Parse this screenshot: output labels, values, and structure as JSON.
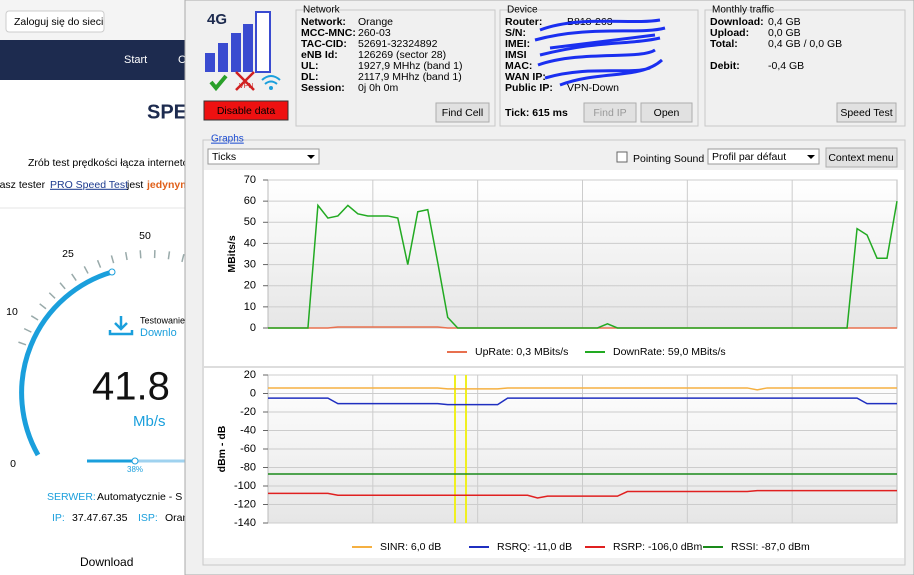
{
  "browser": {
    "login_button": "Zaloguj się do sieci",
    "nav": [
      "Start",
      "C"
    ],
    "heading": "SPE",
    "intro": "Zrób test prędkości łącza internetow",
    "tester": {
      "prefix": "Nasz tester",
      "link": "PRO Speed Test",
      "middle": "jest",
      "highlight": "jedynym"
    },
    "gauge": {
      "labels": [
        0,
        10,
        25,
        50
      ],
      "status": "Testowanie",
      "status_sub": "Downlo",
      "speed": "41.8",
      "unit": "Mb/s",
      "progress": "38%"
    },
    "server_label": "SERWER:",
    "server": "Automatycznie - S",
    "ip_label": "IP:",
    "ip": "37.47.67.35",
    "isp_label": "ISP:",
    "isp": "Oran",
    "download": "Download"
  },
  "status": {
    "tech": "4G",
    "vpn": "VPN",
    "disable_button": "Disable data"
  },
  "network": {
    "title": "Network",
    "rows": [
      [
        "Network:",
        "Orange"
      ],
      [
        "MCC-MNC:",
        "260-03"
      ],
      [
        "TAC-CID:",
        "52691-32324892"
      ],
      [
        "eNB Id:",
        "126269 (sector 28)"
      ],
      [
        "UL:",
        "1927,9 MHhz (band 1)"
      ],
      [
        "DL:",
        "2117,9 MHhz (band 1)"
      ],
      [
        "Session:",
        "0j 0h 0m"
      ]
    ],
    "button": "Find Cell"
  },
  "device": {
    "title": "Device",
    "rows": [
      [
        "Router:",
        "B818-263"
      ],
      [
        "S/N:"
      ],
      [
        "IMEI:"
      ],
      [
        "IMSI"
      ],
      [
        "MAC:"
      ],
      [
        "WAN IP:"
      ],
      [
        "Public IP:",
        "VPN-Down"
      ]
    ],
    "tick": "Tick: 615 ms",
    "buttons": [
      "Find IP",
      "Open"
    ]
  },
  "monthly": {
    "title": "Monthly traffic",
    "rows": [
      [
        "Download:",
        "0,4 GB"
      ],
      [
        "Upload:",
        "0,0 GB"
      ],
      [
        "Total:",
        "0,4 GB / 0,0 GB"
      ],
      [
        "Debit:",
        "-0,4 GB"
      ]
    ],
    "button": "Speed Test"
  },
  "graphs": {
    "title": "Graphs",
    "ticks_select": "Ticks",
    "pointing_sound": "Pointing Sound",
    "profile": "Profil par défaut",
    "context_menu": "Context menu"
  },
  "chart_data": [
    {
      "type": "line",
      "y_label": "MBits/s",
      "ylim": [
        0,
        70
      ],
      "yticks": [
        0,
        10,
        20,
        30,
        40,
        50,
        60,
        70
      ],
      "grid": true,
      "series": [
        {
          "name": "UpRate: 0,3 MBits/s",
          "color": "#e8704f",
          "values": [
            0,
            0,
            0,
            0,
            0,
            0,
            0,
            0.5,
            0.5,
            0.5,
            0.5,
            0.5,
            0.5,
            0.5,
            0.5,
            0.5,
            0.5,
            0.5,
            0,
            0,
            0,
            0,
            0,
            0,
            0,
            0,
            0,
            0,
            0,
            0,
            0,
            0,
            0,
            0,
            0,
            0,
            0,
            0,
            0,
            0,
            0,
            0,
            0,
            0,
            0,
            0,
            0,
            0,
            0,
            0,
            0,
            0,
            0,
            0,
            0,
            0,
            0,
            0,
            0,
            0,
            0,
            0,
            0,
            0
          ]
        },
        {
          "name": "DownRate: 59,0 MBits/s",
          "color": "#22aa22",
          "values": [
            0,
            0,
            0,
            0,
            0,
            58,
            52,
            53,
            58,
            54,
            53,
            53,
            53,
            52,
            30,
            55,
            56,
            31,
            5,
            0,
            0,
            0,
            0,
            0,
            0,
            0,
            0,
            0,
            0,
            0,
            0,
            0,
            0,
            0,
            2,
            0,
            0,
            0,
            0,
            0,
            0,
            0,
            0,
            0,
            0,
            0,
            0,
            0,
            0,
            0,
            0,
            0,
            0,
            0,
            0,
            0,
            0,
            0,
            0,
            47,
            44,
            33,
            33,
            60
          ]
        }
      ]
    },
    {
      "type": "line",
      "y_label": "dBm - dB",
      "ylim": [
        -140,
        20
      ],
      "yticks": [
        -140,
        -120,
        -100,
        -80,
        -60,
        -40,
        -20,
        0,
        20
      ],
      "grid": true,
      "series": [
        {
          "name": "SINR: 6,0 dB",
          "color": "#f5b041",
          "values": [
            6,
            6,
            6,
            6,
            6,
            6,
            6,
            6,
            6,
            6,
            6,
            6,
            6,
            6,
            6,
            6,
            6,
            6,
            5,
            5,
            5,
            5,
            5,
            5,
            6,
            6,
            6,
            6,
            6,
            6,
            6,
            6,
            6,
            6,
            6,
            6,
            6,
            6,
            6,
            6,
            6,
            6,
            6,
            6,
            6,
            6,
            6,
            6,
            6,
            4,
            6,
            6,
            6,
            6,
            6,
            6,
            6,
            6,
            6,
            6,
            6,
            6,
            6,
            6
          ]
        },
        {
          "name": "RSRQ: -11,0 dB",
          "color": "#1f2fc0",
          "values": [
            -5,
            -5,
            -5,
            -5,
            -5,
            -5,
            -5,
            -11,
            -11,
            -11,
            -11,
            -11,
            -11,
            -11,
            -11,
            -11,
            -11,
            -11,
            -12,
            -12,
            -12,
            -12,
            -12,
            -12,
            -5,
            -5,
            -5,
            -5,
            -5,
            -5,
            -5,
            -5,
            -5,
            -5,
            -5,
            -5,
            -5,
            -5,
            -5,
            -5,
            -5,
            -5,
            -5,
            -5,
            -5,
            -5,
            -5,
            -5,
            -5,
            -5,
            -5,
            -5,
            -5,
            -5,
            -5,
            -5,
            -5,
            -5,
            -5,
            -5,
            -11,
            -11,
            -11,
            -11
          ]
        },
        {
          "name": "RSRP: -106,0 dBm",
          "color": "#e02020",
          "values": [
            -108,
            -108,
            -108,
            -108,
            -108,
            -108,
            -108,
            -110,
            -110,
            -110,
            -110,
            -110,
            -110,
            -110,
            -110,
            -110,
            -110,
            -110,
            -110,
            -110,
            -110,
            -110,
            -110,
            -110,
            -110,
            -110,
            -110,
            -113,
            -111,
            -111,
            -111,
            -111,
            -111,
            -111,
            -111,
            -111,
            -106,
            -106,
            -106,
            -106,
            -106,
            -106,
            -106,
            -106,
            -106,
            -106,
            -106,
            -106,
            -106,
            -105,
            -105,
            -105,
            -105,
            -105,
            -105,
            -105,
            -105,
            -105,
            -105,
            -105,
            -105,
            -105,
            -105,
            -105
          ]
        },
        {
          "name": "RSSI: -87,0 dBm",
          "color": "#1a8a1a",
          "values": [
            -87,
            -87,
            -87,
            -87,
            -87,
            -87,
            -87,
            -87,
            -87,
            -87,
            -87,
            -87,
            -87,
            -87,
            -87,
            -87,
            -87,
            -87,
            -87,
            -87,
            -87,
            -87,
            -87,
            -87,
            -87,
            -87,
            -87,
            -87,
            -87,
            -87,
            -87,
            -87,
            -87,
            -87,
            -87,
            -87,
            -87,
            -87,
            -87,
            -87,
            -87,
            -87,
            -87,
            -87,
            -87,
            -87,
            -87,
            -87,
            -87,
            -87,
            -87,
            -87,
            -87,
            -87,
            -87,
            -87,
            -87,
            -87,
            -87,
            -87,
            -87,
            -87,
            -87,
            -87
          ]
        }
      ]
    }
  ]
}
